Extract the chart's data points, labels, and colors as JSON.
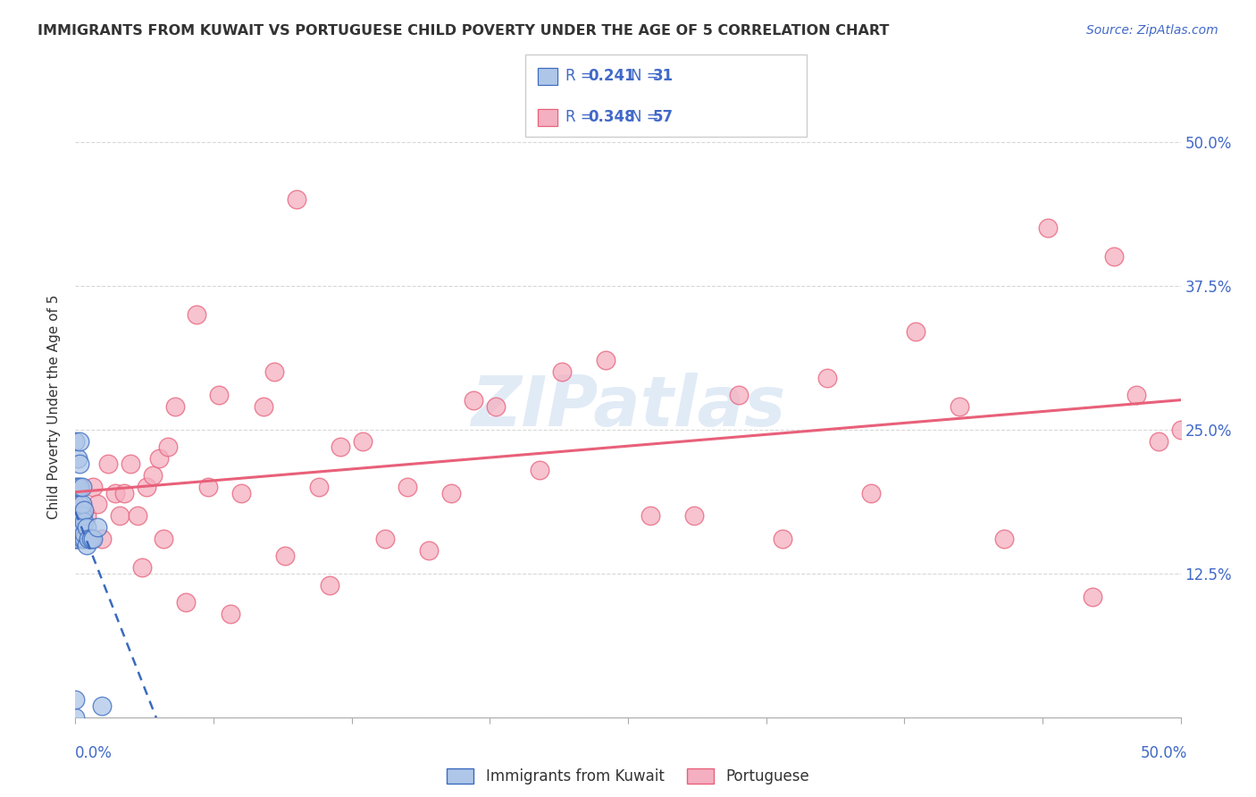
{
  "title": "IMMIGRANTS FROM KUWAIT VS PORTUGUESE CHILD POVERTY UNDER THE AGE OF 5 CORRELATION CHART",
  "source": "Source: ZipAtlas.com",
  "ylabel": "Child Poverty Under the Age of 5",
  "r_kuwait": 0.241,
  "n_kuwait": 31,
  "r_portuguese": 0.348,
  "n_portuguese": 57,
  "color_kuwait": "#aec6e8",
  "color_portuguese": "#f4afc0",
  "trendline_kuwait_color": "#3a6abf",
  "trendline_portuguese_color": "#e8607a",
  "xlim": [
    0,
    0.5
  ],
  "ylim": [
    0,
    0.54
  ],
  "kuwait_x": [
    0.0,
    0.0,
    0.0,
    0.0,
    0.0,
    0.001,
    0.001,
    0.001,
    0.001,
    0.002,
    0.002,
    0.002,
    0.002,
    0.002,
    0.002,
    0.003,
    0.003,
    0.003,
    0.003,
    0.003,
    0.004,
    0.004,
    0.004,
    0.004,
    0.005,
    0.005,
    0.006,
    0.007,
    0.008,
    0.01,
    0.012
  ],
  "kuwait_y": [
    0.0,
    0.015,
    0.155,
    0.2,
    0.24,
    0.155,
    0.175,
    0.2,
    0.225,
    0.16,
    0.175,
    0.185,
    0.2,
    0.22,
    0.24,
    0.155,
    0.165,
    0.175,
    0.185,
    0.2,
    0.155,
    0.16,
    0.17,
    0.18,
    0.15,
    0.165,
    0.155,
    0.155,
    0.155,
    0.165,
    0.01
  ],
  "portuguese_x": [
    0.0,
    0.0,
    0.005,
    0.008,
    0.01,
    0.012,
    0.015,
    0.018,
    0.02,
    0.022,
    0.025,
    0.028,
    0.03,
    0.032,
    0.035,
    0.038,
    0.04,
    0.042,
    0.045,
    0.05,
    0.055,
    0.06,
    0.065,
    0.07,
    0.075,
    0.085,
    0.09,
    0.095,
    0.1,
    0.11,
    0.115,
    0.12,
    0.13,
    0.14,
    0.15,
    0.16,
    0.17,
    0.18,
    0.19,
    0.21,
    0.22,
    0.24,
    0.26,
    0.28,
    0.3,
    0.32,
    0.34,
    0.36,
    0.38,
    0.4,
    0.42,
    0.44,
    0.46,
    0.47,
    0.48,
    0.49,
    0.5
  ],
  "portuguese_y": [
    0.155,
    0.185,
    0.175,
    0.2,
    0.185,
    0.155,
    0.22,
    0.195,
    0.175,
    0.195,
    0.22,
    0.175,
    0.13,
    0.2,
    0.21,
    0.225,
    0.155,
    0.235,
    0.27,
    0.1,
    0.35,
    0.2,
    0.28,
    0.09,
    0.195,
    0.27,
    0.3,
    0.14,
    0.45,
    0.2,
    0.115,
    0.235,
    0.24,
    0.155,
    0.2,
    0.145,
    0.195,
    0.275,
    0.27,
    0.215,
    0.3,
    0.31,
    0.175,
    0.175,
    0.28,
    0.155,
    0.295,
    0.195,
    0.335,
    0.27,
    0.155,
    0.425,
    0.105,
    0.4,
    0.28,
    0.24,
    0.25
  ],
  "watermark_text": "ZIPatlas",
  "background_color": "#ffffff",
  "grid_color": "#d8d8d8"
}
